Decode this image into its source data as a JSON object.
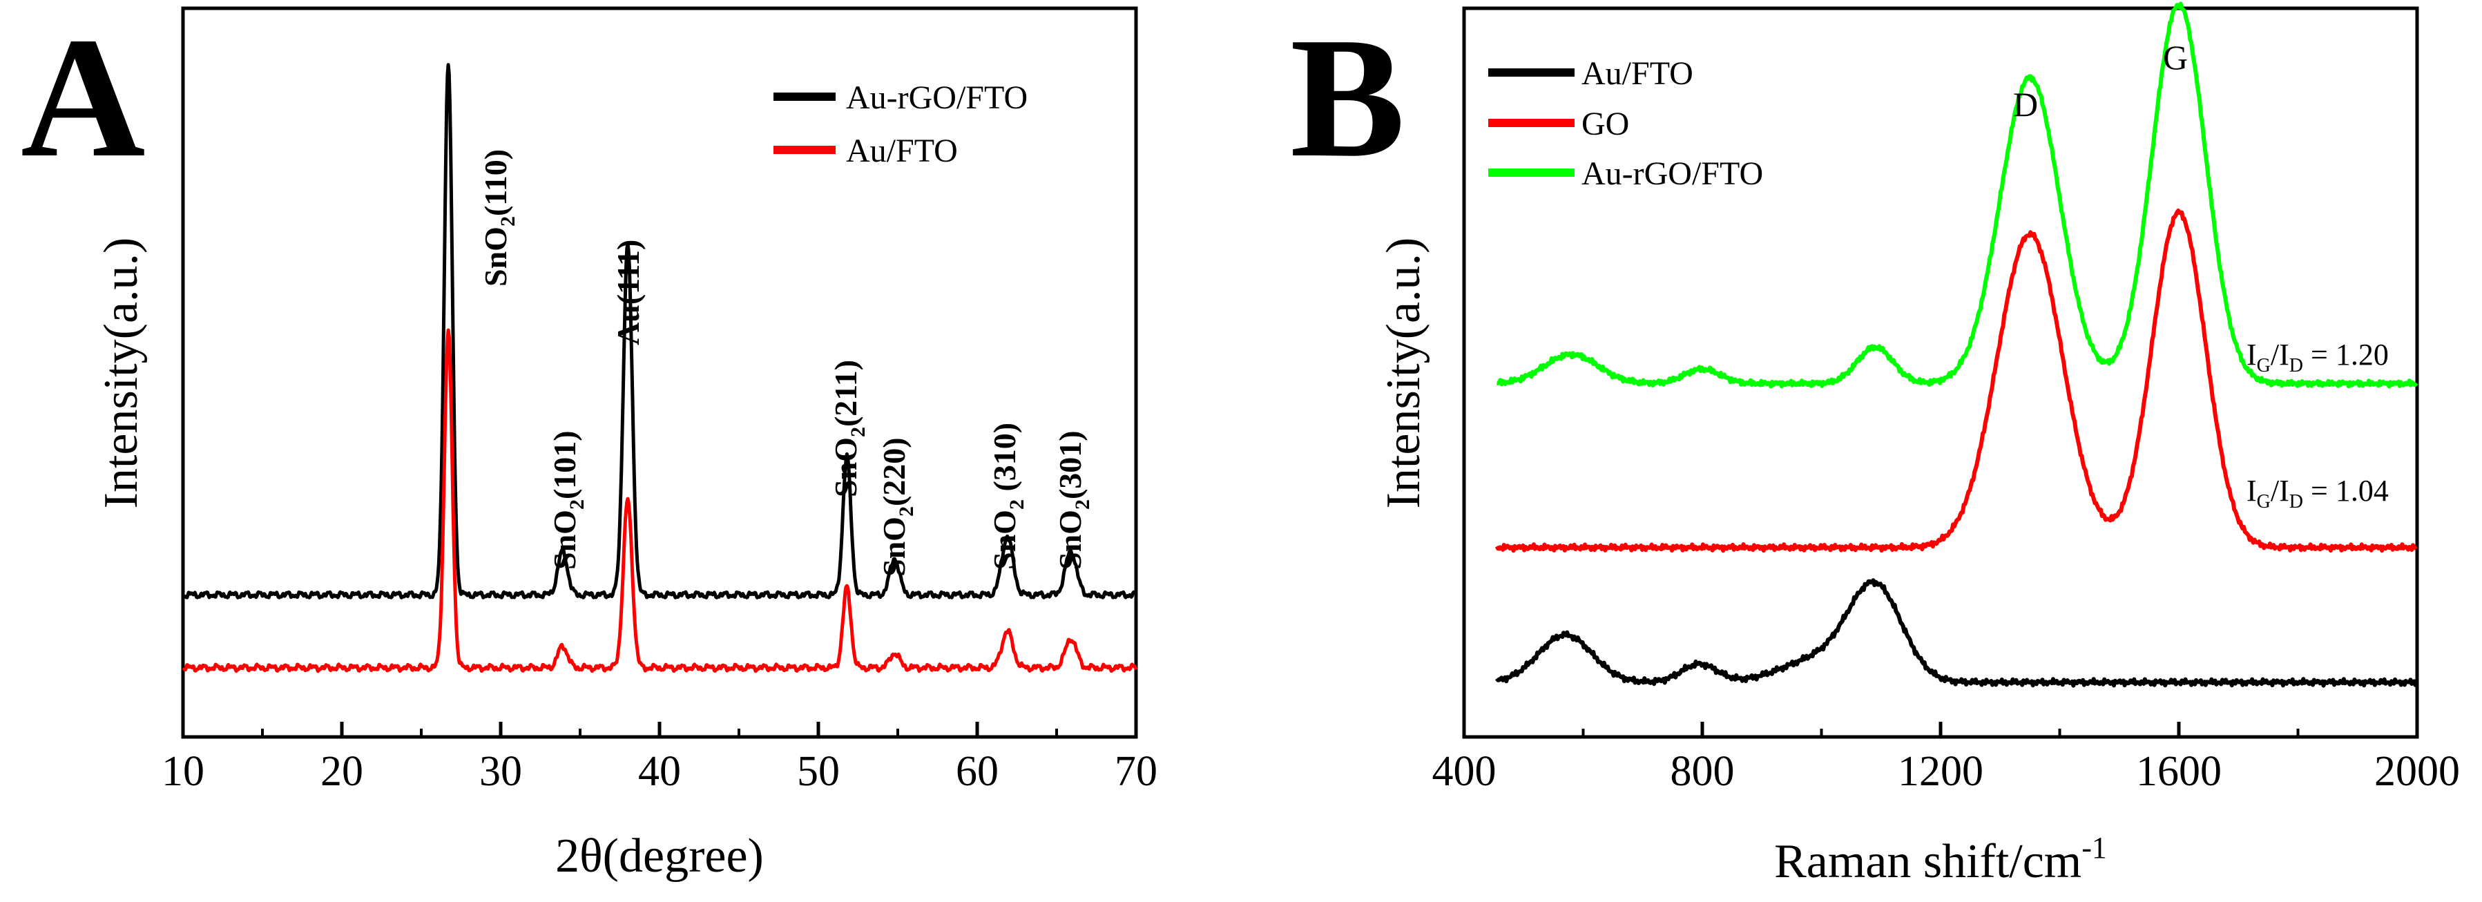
{
  "panels": {
    "A": {
      "letter": "A",
      "xlabel": "2θ(degree)",
      "ylabel": "Intensity(a.u.)",
      "legend": [
        "Au-rGO/FTO",
        "Au/FTO"
      ],
      "peak_labels": [
        {
          "base": "SnO",
          "sub": "2",
          "miller": "(110)",
          "x": 30.6
        },
        {
          "base": "SnO",
          "sub": "2",
          "miller": "(101)",
          "x": 34.1
        },
        {
          "base": "Au",
          "sub": "",
          "miller": "(111)",
          "x": 38.0
        },
        {
          "base": "SnO",
          "sub": "2",
          "miller": "(211)",
          "x": 51.8
        },
        {
          "base": "SnO",
          "sub": "2",
          "miller": "(220)",
          "x": 54.9
        },
        {
          "base": "SnO",
          "sub": "2",
          "miller": " (310)",
          "x": 62.0
        },
        {
          "base": "SnO",
          "sub": "2",
          "miller": "(301)",
          "x": 65.8
        }
      ]
    },
    "B": {
      "letter": "B",
      "xlabel_base": "Raman shift/cm",
      "xlabel_sup": "-1",
      "ylabel": "Intensity(a.u.)",
      "legend": [
        "Au/FTO",
        "GO",
        "Au-rGO/FTO"
      ],
      "peak_D": "D",
      "peak_G": "G",
      "ratio_1": {
        "I": "I",
        "G": "G",
        "slash": "/",
        "D": "D",
        "value": " = 1.20"
      },
      "ratio_2": {
        "I": "I",
        "G": "G",
        "slash": "/",
        "D": "D",
        "value": " = 1.04"
      }
    }
  },
  "colors": {
    "black": "#000000",
    "red": "#ff0000",
    "green": "#00ff00"
  },
  "chart_data": [
    {
      "type": "line",
      "title": "A",
      "xlabel": "2θ(degree)",
      "ylabel": "Intensity(a.u.)",
      "xlim": [
        10,
        70
      ],
      "ylim": [
        0,
        100
      ],
      "xticks": [
        10,
        20,
        30,
        40,
        50,
        60,
        70
      ],
      "legend_position": "top-right",
      "series": [
        {
          "name": "Au-rGO/FTO",
          "color": "#000000",
          "baseline": 19.5,
          "peaks": [
            [
              26.7,
              73,
              0.25
            ],
            [
              33.9,
              6,
              0.3
            ],
            [
              38.0,
              48,
              0.28
            ],
            [
              51.8,
              19,
              0.25
            ],
            [
              54.8,
              5,
              0.3
            ],
            [
              61.9,
              8,
              0.35
            ],
            [
              65.9,
              6,
              0.35
            ]
          ]
        },
        {
          "name": "Au/FTO",
          "color": "#ff0000",
          "baseline": 9.5,
          "peaks": [
            [
              26.7,
              46,
              0.25
            ],
            [
              33.9,
              3,
              0.3
            ],
            [
              38.0,
              23,
              0.28
            ],
            [
              51.8,
              11,
              0.25
            ],
            [
              54.8,
              2,
              0.3
            ],
            [
              61.9,
              5,
              0.35
            ],
            [
              65.9,
              4,
              0.35
            ]
          ]
        }
      ]
    },
    {
      "type": "line",
      "title": "B",
      "xlabel": "Raman shift/cm-1",
      "ylabel": "Intensity(a.u.)",
      "xlim": [
        400,
        2000
      ],
      "ylim": [
        0,
        100
      ],
      "xticks": [
        400,
        800,
        1200,
        1600,
        2000
      ],
      "legend_position": "top-left",
      "annotations": [
        "D",
        "G",
        "IG/ID = 1.20",
        "IG/ID = 1.04"
      ],
      "series": [
        {
          "name": "Au/FTO",
          "color": "#000000",
          "baseline": 7.5,
          "xrange": [
            455,
            2000
          ],
          "peaks": [
            [
              570,
              6.5,
              45
            ],
            [
              795,
              2.5,
              30
            ],
            [
              990,
              3,
              60
            ],
            [
              1090,
              13,
              45
            ]
          ]
        },
        {
          "name": "GO",
          "color": "#ff0000",
          "baseline": 26,
          "xrange": [
            455,
            2000
          ],
          "peaks": [
            [
              1350,
              43,
              55
            ],
            [
              1600,
              46,
              45
            ]
          ]
        },
        {
          "name": "Au-rGO/FTO",
          "color": "#00ff00",
          "baseline": 48.5,
          "xrange": [
            455,
            2000
          ],
          "peaks": [
            [
              1350,
              42,
              50
            ],
            [
              1600,
              52,
              45
            ],
            [
              580,
              4,
              45
            ],
            [
              800,
              2,
              30
            ],
            [
              1090,
              5,
              30
            ]
          ]
        }
      ]
    }
  ]
}
